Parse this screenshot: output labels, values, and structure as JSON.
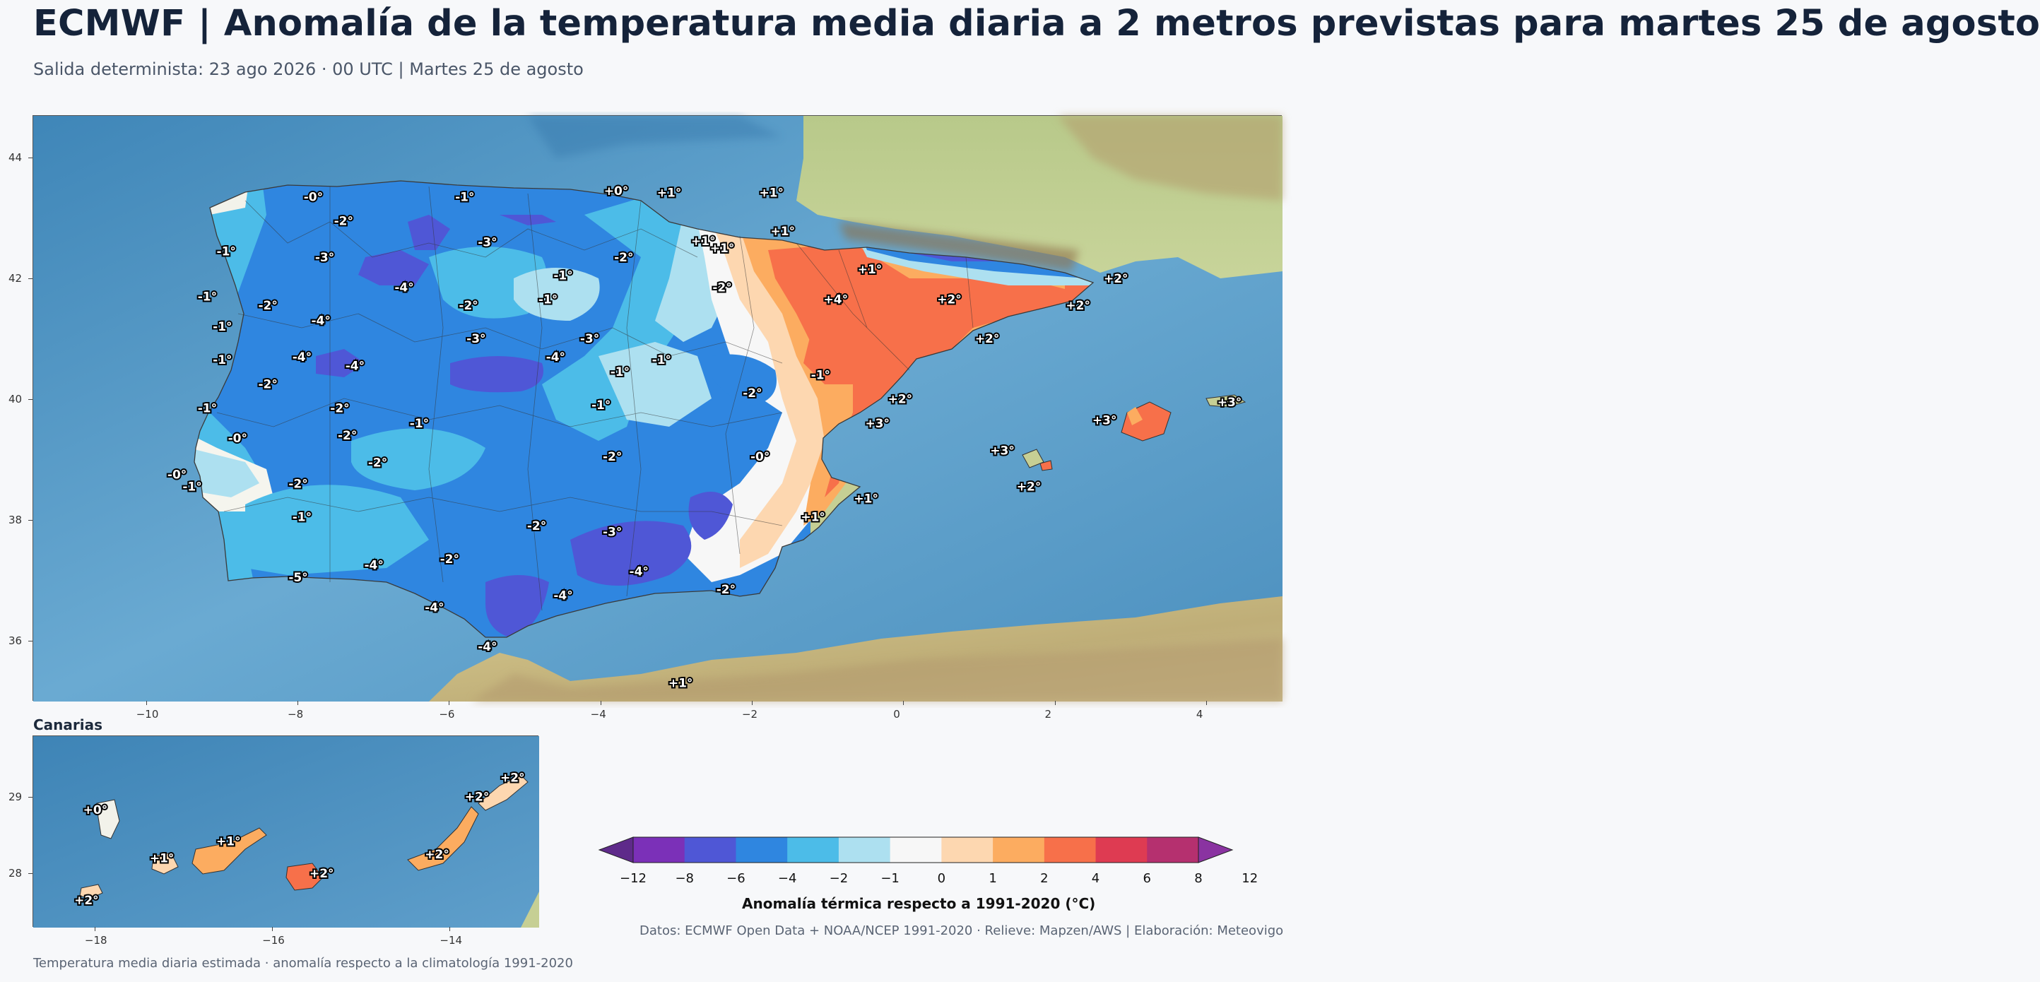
{
  "header": {
    "title": "ECMWF | Anomalía de la temperatura media diaria a 2 metros previstas para martes 25 de agosto",
    "subtitle": "Salida determinista: 23 ago 2026 · 00 UTC  |  Martes 25 de agosto"
  },
  "main_map": {
    "x_ticks": [
      "−10",
      "−8",
      "−6",
      "−4",
      "−2",
      "0",
      "2",
      "4"
    ],
    "y_ticks": [
      "44",
      "42",
      "40",
      "38",
      "36"
    ],
    "extent": {
      "lon": [
        -11.5,
        5.0
      ],
      "lat": [
        35.0,
        44.7
      ]
    },
    "labels": [
      {
        "t": "-0°",
        "lon": -7.8,
        "lat": 43.35
      },
      {
        "t": "-1°",
        "lon": -5.8,
        "lat": 43.35
      },
      {
        "t": "+0°",
        "lon": -3.8,
        "lat": 43.45
      },
      {
        "t": "+1°",
        "lon": -3.1,
        "lat": 43.42
      },
      {
        "t": "+1°",
        "lon": -1.75,
        "lat": 43.42
      },
      {
        "t": "-2°",
        "lon": -7.4,
        "lat": 42.95
      },
      {
        "t": "-3°",
        "lon": -5.5,
        "lat": 42.6
      },
      {
        "t": "+1°",
        "lon": -2.65,
        "lat": 42.62
      },
      {
        "t": "+1°",
        "lon": -2.4,
        "lat": 42.5
      },
      {
        "t": "+1°",
        "lon": -1.6,
        "lat": 42.78
      },
      {
        "t": "-1°",
        "lon": -8.95,
        "lat": 42.45
      },
      {
        "t": "-3°",
        "lon": -7.65,
        "lat": 42.35
      },
      {
        "t": "-2°",
        "lon": -3.7,
        "lat": 42.35
      },
      {
        "t": "+1°",
        "lon": -0.45,
        "lat": 42.15
      },
      {
        "t": "-1°",
        "lon": -4.5,
        "lat": 42.05
      },
      {
        "t": "-4°",
        "lon": -6.6,
        "lat": 41.85
      },
      {
        "t": "-2°",
        "lon": -2.4,
        "lat": 41.85
      },
      {
        "t": "+2°",
        "lon": 2.8,
        "lat": 42.0
      },
      {
        "t": "-1°",
        "lon": -9.2,
        "lat": 41.7
      },
      {
        "t": "-2°",
        "lon": -8.4,
        "lat": 41.55
      },
      {
        "t": "-1°",
        "lon": -4.7,
        "lat": 41.65
      },
      {
        "t": "-2°",
        "lon": -5.75,
        "lat": 41.55
      },
      {
        "t": "+4°",
        "lon": -0.9,
        "lat": 41.65
      },
      {
        "t": "+2°",
        "lon": 0.6,
        "lat": 41.65
      },
      {
        "t": "+2°",
        "lon": 2.3,
        "lat": 41.55
      },
      {
        "t": "-4°",
        "lon": -7.7,
        "lat": 41.3
      },
      {
        "t": "-1°",
        "lon": -9.0,
        "lat": 41.2
      },
      {
        "t": "-3°",
        "lon": -5.65,
        "lat": 41.0
      },
      {
        "t": "-3°",
        "lon": -4.15,
        "lat": 41.0
      },
      {
        "t": "+2°",
        "lon": 1.1,
        "lat": 41.0
      },
      {
        "t": "-1°",
        "lon": -9.0,
        "lat": 40.65
      },
      {
        "t": "-4°",
        "lon": -7.95,
        "lat": 40.7
      },
      {
        "t": "-4°",
        "lon": -7.25,
        "lat": 40.55
      },
      {
        "t": "-4°",
        "lon": -4.6,
        "lat": 40.7
      },
      {
        "t": "-1°",
        "lon": -3.2,
        "lat": 40.65
      },
      {
        "t": "-1°",
        "lon": -3.75,
        "lat": 40.45
      },
      {
        "t": "-1°",
        "lon": -1.1,
        "lat": 40.4
      },
      {
        "t": "-2°",
        "lon": -8.4,
        "lat": 40.25
      },
      {
        "t": "-2°",
        "lon": -2.0,
        "lat": 40.1
      },
      {
        "t": "+2°",
        "lon": -0.05,
        "lat": 40.0
      },
      {
        "t": "-1°",
        "lon": -9.2,
        "lat": 39.85
      },
      {
        "t": "-2°",
        "lon": -7.45,
        "lat": 39.85
      },
      {
        "t": "-1°",
        "lon": -4.0,
        "lat": 39.9
      },
      {
        "t": "-1°",
        "lon": -6.4,
        "lat": 39.6
      },
      {
        "t": "+3°",
        "lon": -0.35,
        "lat": 39.6
      },
      {
        "t": "+3°",
        "lon": 2.65,
        "lat": 39.65
      },
      {
        "t": "+3°",
        "lon": 4.3,
        "lat": 39.95
      },
      {
        "t": "-0°",
        "lon": -8.8,
        "lat": 39.35
      },
      {
        "t": "-2°",
        "lon": -7.35,
        "lat": 39.4
      },
      {
        "t": "+3°",
        "lon": 1.3,
        "lat": 39.15
      },
      {
        "t": "-0°",
        "lon": -9.6,
        "lat": 38.75
      },
      {
        "t": "-2°",
        "lon": -6.95,
        "lat": 38.95
      },
      {
        "t": "-2°",
        "lon": -3.85,
        "lat": 39.05
      },
      {
        "t": "-0°",
        "lon": -1.9,
        "lat": 39.05
      },
      {
        "t": "-1°",
        "lon": -9.4,
        "lat": 38.55
      },
      {
        "t": "-2°",
        "lon": -8.0,
        "lat": 38.6
      },
      {
        "t": "+2°",
        "lon": 1.65,
        "lat": 38.55
      },
      {
        "t": "+1°",
        "lon": -0.5,
        "lat": 38.35
      },
      {
        "t": "-1°",
        "lon": -7.95,
        "lat": 38.05
      },
      {
        "t": "+1°",
        "lon": -1.2,
        "lat": 38.05
      },
      {
        "t": "-2°",
        "lon": -4.85,
        "lat": 37.9
      },
      {
        "t": "-3°",
        "lon": -3.85,
        "lat": 37.8
      },
      {
        "t": "-2°",
        "lon": -6.0,
        "lat": 37.35
      },
      {
        "t": "-4°",
        "lon": -7.0,
        "lat": 37.25
      },
      {
        "t": "-4°",
        "lon": -3.5,
        "lat": 37.15
      },
      {
        "t": "-5°",
        "lon": -8.0,
        "lat": 37.05
      },
      {
        "t": "-2°",
        "lon": -2.35,
        "lat": 36.85
      },
      {
        "t": "-4°",
        "lon": -6.2,
        "lat": 36.55
      },
      {
        "t": "-4°",
        "lon": -4.5,
        "lat": 36.75
      },
      {
        "t": "-4°",
        "lon": -5.5,
        "lat": 35.9
      },
      {
        "t": "+1°",
        "lon": -2.95,
        "lat": 35.3
      }
    ]
  },
  "canary_map": {
    "title": "Canarias",
    "x_ticks": [
      "−18",
      "−16",
      "−14"
    ],
    "y_ticks": [
      "29",
      "28"
    ],
    "extent": {
      "lon": [
        -18.7,
        -13.0
      ],
      "lat": [
        27.3,
        29.8
      ]
    },
    "labels": [
      {
        "t": "+0°",
        "lon": -18.0,
        "lat": 28.83
      },
      {
        "t": "+1°",
        "lon": -17.25,
        "lat": 28.2
      },
      {
        "t": "+1°",
        "lon": -16.5,
        "lat": 28.42
      },
      {
        "t": "+2°",
        "lon": -15.45,
        "lat": 28.0
      },
      {
        "t": "+2°",
        "lon": -14.15,
        "lat": 28.25
      },
      {
        "t": "+2°",
        "lon": -13.7,
        "lat": 29.0
      },
      {
        "t": "+2°",
        "lon": -13.3,
        "lat": 29.25
      },
      {
        "t": "+2°",
        "lon": -18.1,
        "lat": 27.65
      }
    ]
  },
  "colorbar": {
    "label": "Anomalía térmica respecto a 1991-2020 (°C)",
    "ticks": [
      "−12",
      "−8",
      "−6",
      "−4",
      "−2",
      "−1",
      "0",
      "1",
      "2",
      "4",
      "6",
      "8",
      "12"
    ],
    "colors": [
      "#5e2a8a",
      "#7b30b8",
      "#4f57d6",
      "#2f86e0",
      "#4cbce8",
      "#ade0f0",
      "#f7f7f7",
      "#fdd7b0",
      "#fcac60",
      "#f7704a",
      "#de3b52",
      "#b5306f",
      "#8a33a1"
    ]
  },
  "credits": "Datos: ECMWF Open Data + NOAA/NCEP 1991-2020 · Relieve: Mapzen/AWS  |  Elaboración: Meteovigo",
  "footnote": "Temperatura media diaria estimada · anomalía respecto a la climatología 1991-2020"
}
